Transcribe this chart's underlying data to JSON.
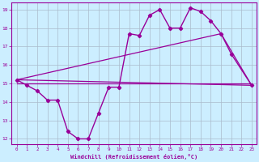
{
  "xlabel": "Windchill (Refroidissement éolien,°C)",
  "background_color": "#cceeff",
  "grid_color": "#aabbcc",
  "line_color": "#990099",
  "xlim": [
    -0.5,
    23.5
  ],
  "ylim": [
    11.7,
    19.4
  ],
  "xticks": [
    0,
    1,
    2,
    3,
    4,
    5,
    6,
    7,
    8,
    9,
    10,
    11,
    12,
    13,
    14,
    15,
    16,
    17,
    18,
    19,
    20,
    21,
    22,
    23
  ],
  "yticks": [
    12,
    13,
    14,
    15,
    16,
    17,
    18,
    19
  ],
  "main_x": [
    0,
    1,
    2,
    3,
    4,
    5,
    6,
    7,
    8,
    9,
    10,
    11,
    12,
    13,
    14,
    15,
    16,
    17,
    18,
    19,
    20,
    21,
    23
  ],
  "main_y": [
    15.2,
    14.9,
    14.6,
    14.1,
    14.1,
    12.4,
    12.0,
    12.0,
    13.4,
    14.8,
    14.8,
    17.7,
    17.6,
    18.7,
    19.0,
    18.0,
    18.0,
    19.1,
    18.9,
    18.4,
    17.7,
    16.6,
    14.9
  ],
  "trend1_x": [
    0,
    23
  ],
  "trend1_y": [
    15.2,
    14.9
  ],
  "trend2_x": [
    0,
    23
  ],
  "trend2_y": [
    15.0,
    15.0
  ],
  "trend3_x": [
    0,
    20,
    23
  ],
  "trend3_y": [
    15.2,
    17.7,
    14.9
  ]
}
